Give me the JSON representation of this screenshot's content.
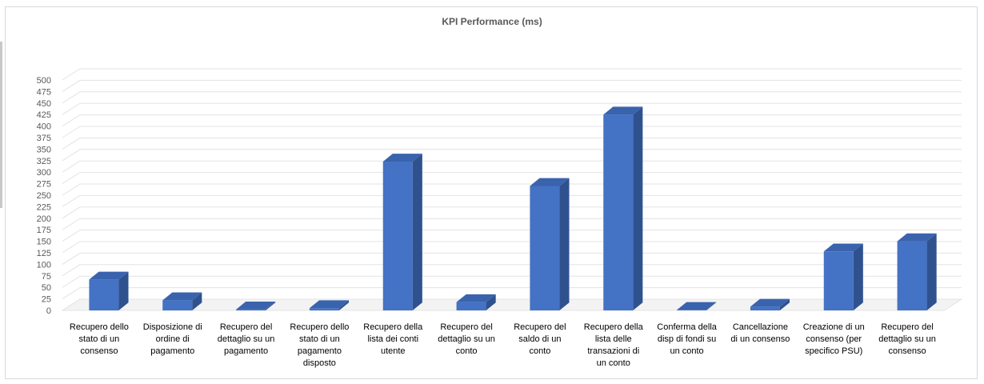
{
  "chart_data": {
    "type": "bar",
    "title": "KPI Performance (ms)",
    "xlabel": "",
    "ylabel": "",
    "ylim": [
      0,
      500
    ],
    "ytick_step": 25,
    "grid": true,
    "legend": "none",
    "bar_color": "#4472c4",
    "bar_side_color": "#2f528f",
    "bar_top_color": "#3a63ad",
    "categories": [
      [
        "Recupero dello",
        "stato di un",
        "consenso"
      ],
      [
        "Disposizione di",
        "ordine di",
        "pagamento"
      ],
      [
        "Recupero del",
        "dettaglio su un",
        "pagamento"
      ],
      [
        "Recupero dello",
        "stato di un",
        "pagamento",
        "disposto"
      ],
      [
        "Recupero della",
        "lista dei conti",
        "utente"
      ],
      [
        "Recupero del",
        "dettaglio su un",
        "conto"
      ],
      [
        "Recupero del",
        "saldo di un",
        "conto"
      ],
      [
        "Recupero della",
        "lista delle",
        "transazioni di",
        "un conto"
      ],
      [
        "Conferma della",
        "disp di fondi su",
        "un conto"
      ],
      [
        "Cancellazione",
        "di un consenso"
      ],
      [
        "Creazione di un",
        "consenso (per",
        "specifico PSU)"
      ],
      [
        "Recupero del",
        "dettaglio su un",
        "consenso"
      ]
    ],
    "values": [
      67,
      22,
      2,
      5,
      323,
      18,
      270,
      425,
      1,
      8,
      128,
      150
    ]
  }
}
